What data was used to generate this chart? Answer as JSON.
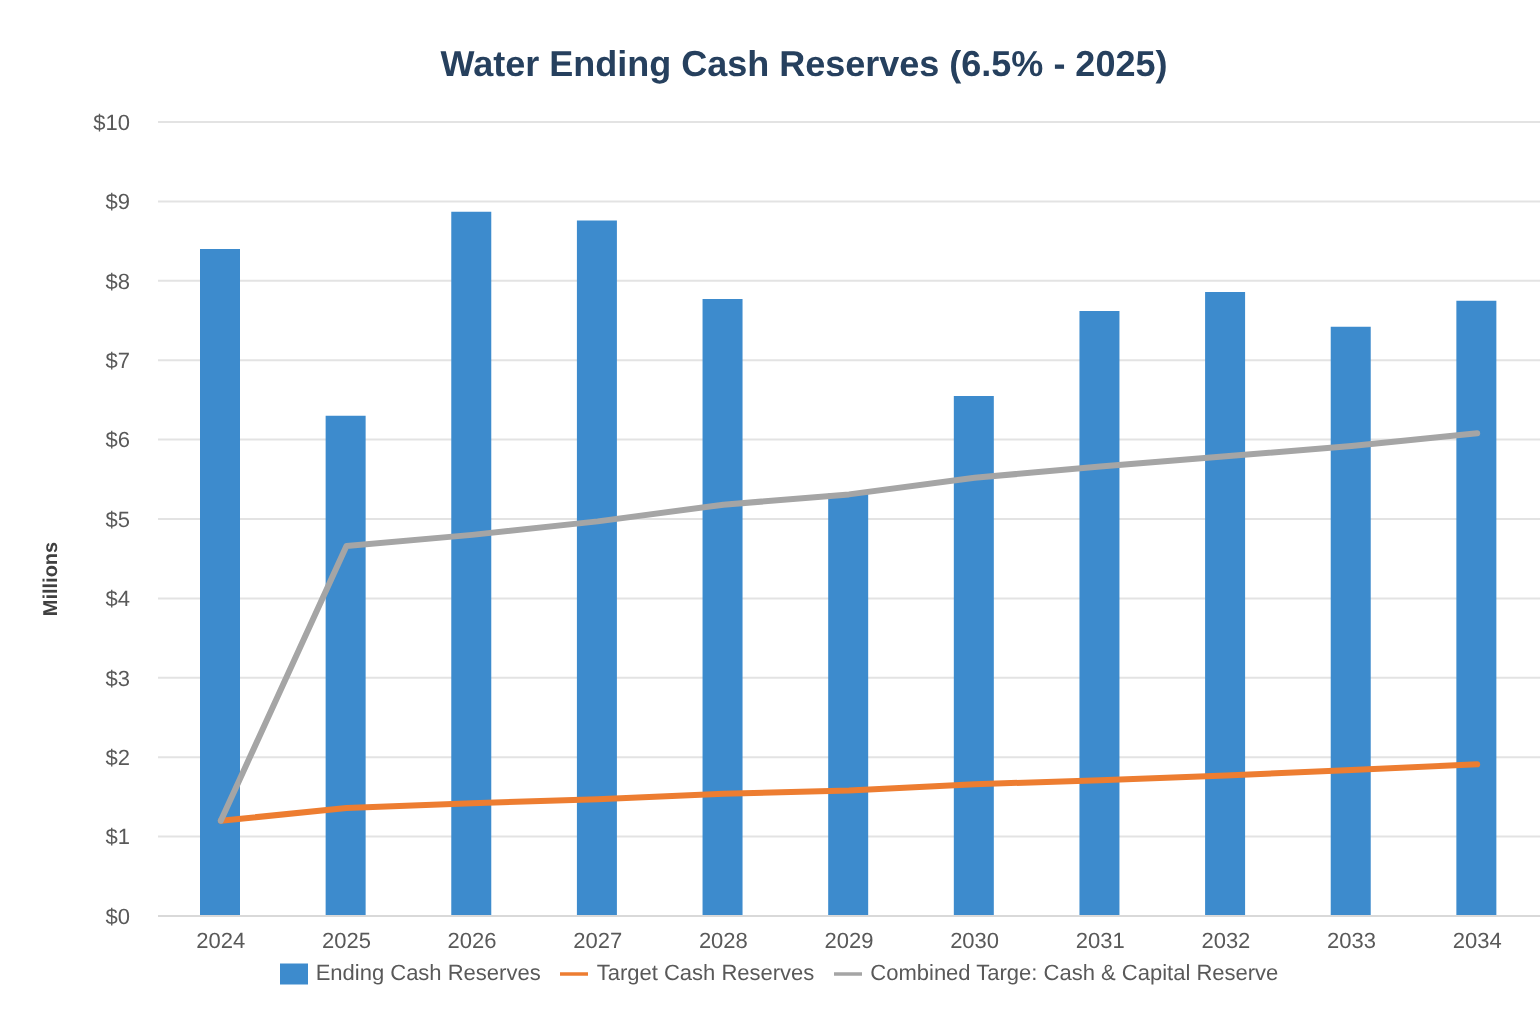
{
  "chart_data": {
    "type": "bar",
    "title": "Water Ending Cash Reserves (6.5% - 2025)",
    "ylabel": "Millions",
    "categories": [
      "2024",
      "2025",
      "2026",
      "2027",
      "2028",
      "2029",
      "2030",
      "2031",
      "2032",
      "2033",
      "2034"
    ],
    "series": [
      {
        "name": "Ending Cash Reserves",
        "color": "#3d8bcd",
        "values": [
          8.4,
          6.3,
          8.87,
          8.76,
          7.77,
          5.32,
          6.55,
          7.62,
          7.86,
          7.42,
          7.75
        ]
      },
      {
        "name": "Target Cash Reserves",
        "type": "line",
        "color": "#ed7d31",
        "values": [
          1.2,
          1.36,
          1.42,
          1.47,
          1.54,
          1.58,
          1.66,
          1.71,
          1.77,
          1.84,
          1.91
        ]
      },
      {
        "name": "Combined Targe: Cash & Capital Reserve",
        "type": "line",
        "color": "#a5a5a5",
        "values": [
          1.2,
          4.66,
          4.8,
          4.97,
          5.18,
          5.31,
          5.52,
          5.66,
          5.79,
          5.92,
          6.08
        ]
      }
    ],
    "ylim": [
      0,
      10
    ],
    "yticks": [
      {
        "value": 0,
        "label": "$0"
      },
      {
        "value": 1,
        "label": "$1"
      },
      {
        "value": 2,
        "label": "$2"
      },
      {
        "value": 3,
        "label": "$3"
      },
      {
        "value": 4,
        "label": "$4"
      },
      {
        "value": 5,
        "label": "$5"
      },
      {
        "value": 6,
        "label": "$6"
      },
      {
        "value": 7,
        "label": "$7"
      },
      {
        "value": 8,
        "label": "$8"
      },
      {
        "value": 9,
        "label": "$9"
      },
      {
        "value": 10,
        "label": "$10"
      }
    ],
    "grid": "y",
    "legend": "bottom",
    "marker": "none",
    "line_style": "solid"
  }
}
